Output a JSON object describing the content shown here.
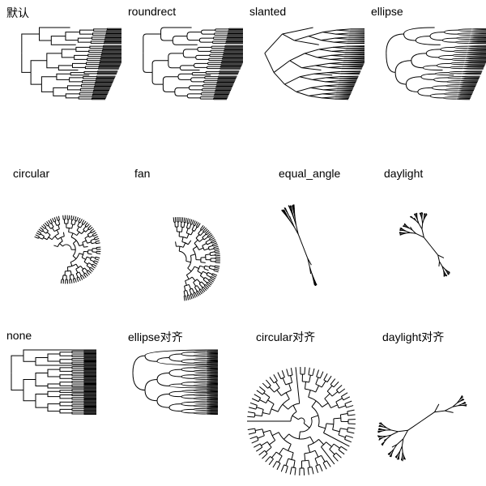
{
  "panels": [
    {
      "title": "默认",
      "layout": "rectangular"
    },
    {
      "title": "roundrect",
      "layout": "roundrect"
    },
    {
      "title": "slanted",
      "layout": "slanted"
    },
    {
      "title": "ellipse",
      "layout": "ellipse"
    },
    {
      "title": "circular",
      "layout": "circular"
    },
    {
      "title": "fan",
      "layout": "fan"
    },
    {
      "title": "equal_angle",
      "layout": "equal_angle"
    },
    {
      "title": "daylight",
      "layout": "daylight"
    },
    {
      "title": "none",
      "layout": "rectangular-aligned"
    },
    {
      "title": "ellipse对齐",
      "layout": "ellipse-aligned"
    },
    {
      "title": "circular对齐",
      "layout": "circular-aligned"
    },
    {
      "title": "daylight对齐",
      "layout": "daylight-aligned"
    }
  ]
}
